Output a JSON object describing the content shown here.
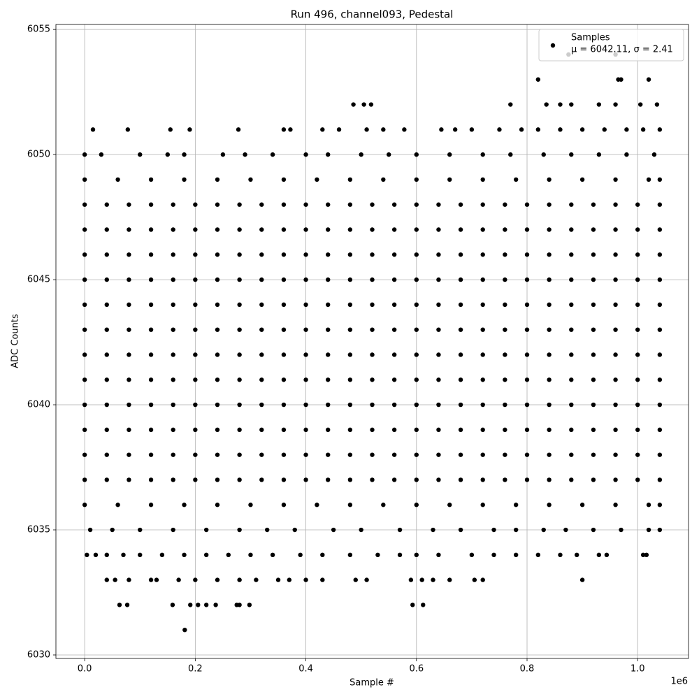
{
  "chart_data": {
    "type": "scatter",
    "title": "Run 496, channel093, Pedestal",
    "x_label": "Sample #",
    "y_label": "ADC Counts",
    "x_offset_label": "1e6",
    "xlim": [
      -0.052,
      1.092
    ],
    "ylim": [
      6029.86,
      6055.2
    ],
    "xticks": [
      {
        "value": 0,
        "label": "0.0"
      },
      0.2,
      0.4,
      0.6,
      0.8,
      {
        "value": 1,
        "label": "1.0"
      }
    ],
    "yticks": [
      6030,
      6035,
      6040,
      6045,
      6050,
      6055
    ],
    "grid": true,
    "legend": "upper right",
    "legend_stats": "μ = 6042.11, σ = 2.41",
    "series": [
      {
        "name": "Samples",
        "color": "#000000",
        "x": [
          0,
          0.04,
          0.08,
          0.12,
          0.16,
          0.2,
          0.24,
          0.28,
          0.32,
          0.36,
          0.4,
          0.44,
          0.48,
          0.52,
          0.56,
          0.6,
          0.64,
          0.68,
          0.72,
          0.76,
          0.8,
          0.84,
          0.88,
          0.92,
          0.96,
          1,
          1.04,
          0,
          0.04,
          0.08,
          0.12,
          0.16,
          0.2,
          0.24,
          0.28,
          0.32,
          0.36,
          0.4,
          0.44,
          0.48,
          0.52,
          0.56,
          0.6,
          0.64,
          0.68,
          0.72,
          0.76,
          0.8,
          0.84,
          0.88,
          0.92,
          0.96,
          1,
          1.04,
          0,
          0.04,
          0.08,
          0.12,
          0.16,
          0.2,
          0.24,
          0.28,
          0.32,
          0.36,
          0.4,
          0.44,
          0.48,
          0.52,
          0.56,
          0.6,
          0.64,
          0.68,
          0.72,
          0.76,
          0.8,
          0.84,
          0.88,
          0.92,
          0.96,
          1,
          1.04,
          0,
          0.04,
          0.08,
          0.12,
          0.16,
          0.2,
          0.24,
          0.28,
          0.32,
          0.36,
          0.4,
          0.44,
          0.48,
          0.52,
          0.56,
          0.6,
          0.64,
          0.68,
          0.72,
          0.76,
          0.8,
          0.84,
          0.88,
          0.92,
          0.96,
          1,
          1.04,
          0,
          0.04,
          0.08,
          0.12,
          0.16,
          0.2,
          0.24,
          0.28,
          0.32,
          0.36,
          0.4,
          0.44,
          0.48,
          0.52,
          0.56,
          0.6,
          0.64,
          0.68,
          0.72,
          0.76,
          0.8,
          0.84,
          0.88,
          0.92,
          0.96,
          1,
          1.04,
          0,
          0.04,
          0.08,
          0.12,
          0.16,
          0.2,
          0.24,
          0.28,
          0.32,
          0.36,
          0.4,
          0.44,
          0.48,
          0.52,
          0.56,
          0.6,
          0.64,
          0.68,
          0.72,
          0.76,
          0.8,
          0.84,
          0.88,
          0.92,
          0.96,
          1,
          1.04,
          0,
          0.04,
          0.08,
          0.12,
          0.16,
          0.2,
          0.24,
          0.28,
          0.32,
          0.36,
          0.4,
          0.44,
          0.48,
          0.52,
          0.56,
          0.6,
          0.64,
          0.68,
          0.72,
          0.76,
          0.8,
          0.84,
          0.88,
          0.92,
          0.96,
          1,
          1.04,
          0,
          0.04,
          0.08,
          0.12,
          0.16,
          0.2,
          0.24,
          0.28,
          0.32,
          0.36,
          0.4,
          0.44,
          0.48,
          0.52,
          0.56,
          0.6,
          0.64,
          0.68,
          0.72,
          0.76,
          0.8,
          0.84,
          0.88,
          0.92,
          0.96,
          1,
          1.04,
          0,
          0.04,
          0.08,
          0.12,
          0.16,
          0.2,
          0.24,
          0.28,
          0.32,
          0.36,
          0.4,
          0.44,
          0.48,
          0.52,
          0.56,
          0.6,
          0.64,
          0.68,
          0.72,
          0.76,
          0.8,
          0.84,
          0.88,
          0.92,
          0.96,
          1,
          1.04,
          0,
          0.04,
          0.08,
          0.12,
          0.16,
          0.2,
          0.24,
          0.28,
          0.32,
          0.36,
          0.4,
          0.44,
          0.48,
          0.52,
          0.56,
          0.6,
          0.64,
          0.68,
          0.72,
          0.76,
          0.8,
          0.84,
          0.88,
          0.92,
          0.96,
          1,
          1.04,
          0,
          0.04,
          0.08,
          0.12,
          0.16,
          0.2,
          0.24,
          0.28,
          0.32,
          0.36,
          0.4,
          0.44,
          0.48,
          0.52,
          0.56,
          0.6,
          0.64,
          0.68,
          0.72,
          0.76,
          0.8,
          0.84,
          0.88,
          0.92,
          0.96,
          1,
          1.04,
          0,
          0.04,
          0.08,
          0.12,
          0.16,
          0.2,
          0.24,
          0.28,
          0.32,
          0.36,
          0.4,
          0.44,
          0.48,
          0.52,
          0.56,
          0.6,
          0.64,
          0.68,
          0.72,
          0.76,
          0.8,
          0.84,
          0.88,
          0.92,
          0.96,
          1,
          1.04,
          0,
          0.06,
          0.12,
          0.18,
          0.24,
          0.3,
          0.36,
          0.42,
          0.48,
          0.54,
          0.6,
          0.66,
          0.72,
          0.78,
          0.84,
          0.9,
          0.96,
          1.02,
          1.04,
          0,
          0.06,
          0.12,
          0.18,
          0.24,
          0.3,
          0.36,
          0.42,
          0.48,
          0.54,
          0.6,
          0.66,
          0.72,
          0.78,
          0.84,
          0.9,
          0.96,
          1.02,
          1.04,
          0,
          0.03,
          0.1,
          0.15,
          0.18,
          0.25,
          0.29,
          0.34,
          0.4,
          0.44,
          0.5,
          0.55,
          0.6,
          0.66,
          0.72,
          0.77,
          0.83,
          0.88,
          0.93,
          0.98,
          1.03,
          0.01,
          0.05,
          0.1,
          0.16,
          0.22,
          0.28,
          0.33,
          0.38,
          0.45,
          0.5,
          0.57,
          0.63,
          0.68,
          0.74,
          0.78,
          0.83,
          0.87,
          0.92,
          0.97,
          1.02,
          1.04,
          0.015,
          0.078,
          0.155,
          0.19,
          0.278,
          0.36,
          0.372,
          0.43,
          0.46,
          0.51,
          0.54,
          0.578,
          0.645,
          0.67,
          0.7,
          0.75,
          0.79,
          0.82,
          0.86,
          0.9,
          0.94,
          0.98,
          1.01,
          1.04,
          0.486,
          0.505,
          0.518,
          0.77,
          0.835,
          0.86,
          0.88,
          0.93,
          0.96,
          1.005,
          1.035,
          0.82,
          0.965,
          0.97,
          1.02,
          0.875,
          0.96,
          0.004,
          0.02,
          0.04,
          0.07,
          0.1,
          0.14,
          0.18,
          0.22,
          0.26,
          0.3,
          0.34,
          0.39,
          0.43,
          0.48,
          0.53,
          0.57,
          0.6,
          0.64,
          0.7,
          0.74,
          0.78,
          0.82,
          0.86,
          0.89,
          0.93,
          0.944,
          1.01,
          1.016,
          0.04,
          0.055,
          0.08,
          0.12,
          0.13,
          0.17,
          0.2,
          0.24,
          0.28,
          0.31,
          0.35,
          0.37,
          0.4,
          0.43,
          0.49,
          0.51,
          0.59,
          0.61,
          0.63,
          0.66,
          0.705,
          0.72,
          0.9,
          0.063,
          0.077,
          0.159,
          0.191,
          0.205,
          0.22,
          0.237,
          0.275,
          0.28,
          0.298,
          0.593,
          0.612,
          0.181
        ],
        "y": [
          6048,
          6048,
          6048,
          6048,
          6048,
          6048,
          6048,
          6048,
          6048,
          6048,
          6048,
          6048,
          6048,
          6048,
          6048,
          6048,
          6048,
          6048,
          6048,
          6048,
          6048,
          6048,
          6048,
          6048,
          6048,
          6048,
          6048,
          6047,
          6047,
          6047,
          6047,
          6047,
          6047,
          6047,
          6047,
          6047,
          6047,
          6047,
          6047,
          6047,
          6047,
          6047,
          6047,
          6047,
          6047,
          6047,
          6047,
          6047,
          6047,
          6047,
          6047,
          6047,
          6047,
          6047,
          6046,
          6046,
          6046,
          6046,
          6046,
          6046,
          6046,
          6046,
          6046,
          6046,
          6046,
          6046,
          6046,
          6046,
          6046,
          6046,
          6046,
          6046,
          6046,
          6046,
          6046,
          6046,
          6046,
          6046,
          6046,
          6046,
          6046,
          6045,
          6045,
          6045,
          6045,
          6045,
          6045,
          6045,
          6045,
          6045,
          6045,
          6045,
          6045,
          6045,
          6045,
          6045,
          6045,
          6045,
          6045,
          6045,
          6045,
          6045,
          6045,
          6045,
          6045,
          6045,
          6045,
          6045,
          6044,
          6044,
          6044,
          6044,
          6044,
          6044,
          6044,
          6044,
          6044,
          6044,
          6044,
          6044,
          6044,
          6044,
          6044,
          6044,
          6044,
          6044,
          6044,
          6044,
          6044,
          6044,
          6044,
          6044,
          6044,
          6044,
          6044,
          6043,
          6043,
          6043,
          6043,
          6043,
          6043,
          6043,
          6043,
          6043,
          6043,
          6043,
          6043,
          6043,
          6043,
          6043,
          6043,
          6043,
          6043,
          6043,
          6043,
          6043,
          6043,
          6043,
          6043,
          6043,
          6043,
          6043,
          6042,
          6042,
          6042,
          6042,
          6042,
          6042,
          6042,
          6042,
          6042,
          6042,
          6042,
          6042,
          6042,
          6042,
          6042,
          6042,
          6042,
          6042,
          6042,
          6042,
          6042,
          6042,
          6042,
          6042,
          6042,
          6042,
          6042,
          6041,
          6041,
          6041,
          6041,
          6041,
          6041,
          6041,
          6041,
          6041,
          6041,
          6041,
          6041,
          6041,
          6041,
          6041,
          6041,
          6041,
          6041,
          6041,
          6041,
          6041,
          6041,
          6041,
          6041,
          6041,
          6041,
          6041,
          6040,
          6040,
          6040,
          6040,
          6040,
          6040,
          6040,
          6040,
          6040,
          6040,
          6040,
          6040,
          6040,
          6040,
          6040,
          6040,
          6040,
          6040,
          6040,
          6040,
          6040,
          6040,
          6040,
          6040,
          6040,
          6040,
          6040,
          6039,
          6039,
          6039,
          6039,
          6039,
          6039,
          6039,
          6039,
          6039,
          6039,
          6039,
          6039,
          6039,
          6039,
          6039,
          6039,
          6039,
          6039,
          6039,
          6039,
          6039,
          6039,
          6039,
          6039,
          6039,
          6039,
          6039,
          6038,
          6038,
          6038,
          6038,
          6038,
          6038,
          6038,
          6038,
          6038,
          6038,
          6038,
          6038,
          6038,
          6038,
          6038,
          6038,
          6038,
          6038,
          6038,
          6038,
          6038,
          6038,
          6038,
          6038,
          6038,
          6038,
          6038,
          6037,
          6037,
          6037,
          6037,
          6037,
          6037,
          6037,
          6037,
          6037,
          6037,
          6037,
          6037,
          6037,
          6037,
          6037,
          6037,
          6037,
          6037,
          6037,
          6037,
          6037,
          6037,
          6037,
          6037,
          6037,
          6037,
          6037,
          6049,
          6049,
          6049,
          6049,
          6049,
          6049,
          6049,
          6049,
          6049,
          6049,
          6049,
          6049,
          6049,
          6049,
          6049,
          6049,
          6049,
          6049,
          6049,
          6036,
          6036,
          6036,
          6036,
          6036,
          6036,
          6036,
          6036,
          6036,
          6036,
          6036,
          6036,
          6036,
          6036,
          6036,
          6036,
          6036,
          6036,
          6036,
          6050,
          6050,
          6050,
          6050,
          6050,
          6050,
          6050,
          6050,
          6050,
          6050,
          6050,
          6050,
          6050,
          6050,
          6050,
          6050,
          6050,
          6050,
          6050,
          6050,
          6050,
          6035,
          6035,
          6035,
          6035,
          6035,
          6035,
          6035,
          6035,
          6035,
          6035,
          6035,
          6035,
          6035,
          6035,
          6035,
          6035,
          6035,
          6035,
          6035,
          6035,
          6035,
          6051,
          6051,
          6051,
          6051,
          6051,
          6051,
          6051,
          6051,
          6051,
          6051,
          6051,
          6051,
          6051,
          6051,
          6051,
          6051,
          6051,
          6051,
          6051,
          6051,
          6051,
          6051,
          6051,
          6051,
          6052,
          6052,
          6052,
          6052,
          6052,
          6052,
          6052,
          6052,
          6052,
          6052,
          6052,
          6053,
          6053,
          6053,
          6053,
          6054,
          6054,
          6034,
          6034,
          6034,
          6034,
          6034,
          6034,
          6034,
          6034,
          6034,
          6034,
          6034,
          6034,
          6034,
          6034,
          6034,
          6034,
          6034,
          6034,
          6034,
          6034,
          6034,
          6034,
          6034,
          6034,
          6034,
          6034,
          6034,
          6034,
          6033,
          6033,
          6033,
          6033,
          6033,
          6033,
          6033,
          6033,
          6033,
          6033,
          6033,
          6033,
          6033,
          6033,
          6033,
          6033,
          6033,
          6033,
          6033,
          6033,
          6033,
          6033,
          6033,
          6032,
          6032,
          6032,
          6032,
          6032,
          6032,
          6032,
          6032,
          6032,
          6032,
          6032,
          6032,
          6031
        ]
      }
    ]
  }
}
